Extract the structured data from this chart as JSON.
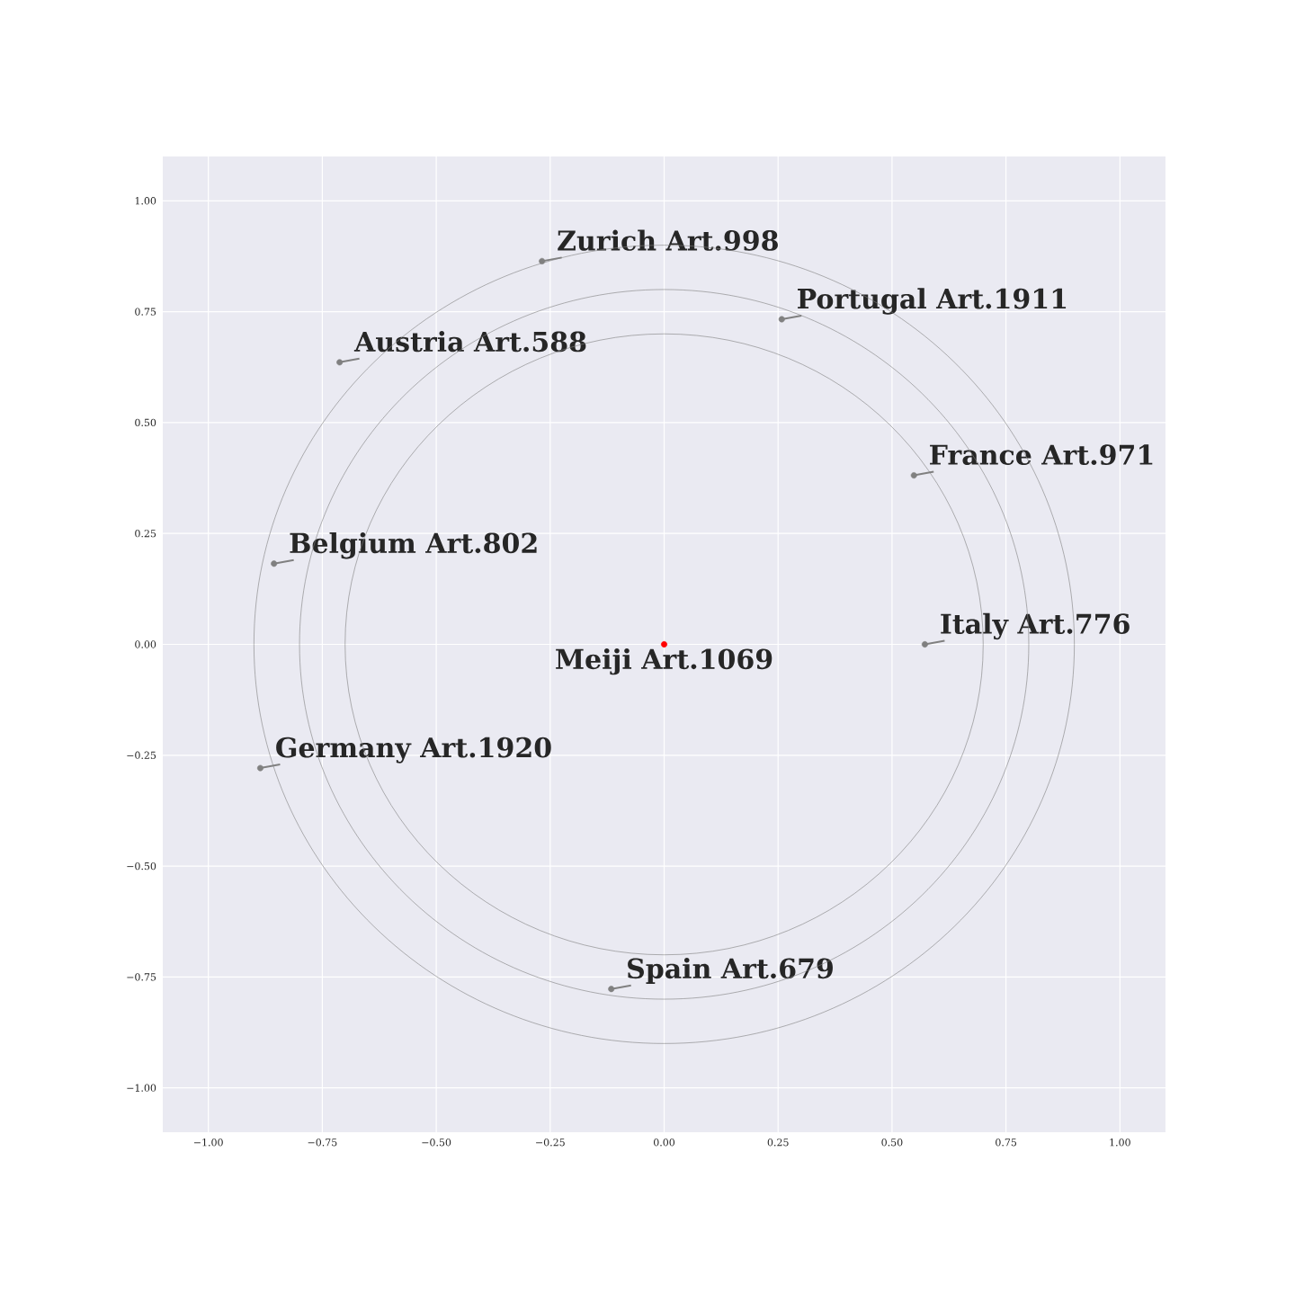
{
  "chart_data": {
    "type": "scatter",
    "xlim": [
      -1.1,
      1.1
    ],
    "ylim": [
      -1.1,
      1.1
    ],
    "grid": true,
    "xticks": [
      {
        "value": -1,
        "label": "−1.00"
      },
      {
        "value": -0.75,
        "label": "−0.75"
      },
      {
        "value": -0.5,
        "label": "−0.50"
      },
      {
        "value": -0.25,
        "label": "−0.25"
      },
      {
        "value": 0,
        "label": "0.00"
      },
      {
        "value": 0.25,
        "label": "0.25"
      },
      {
        "value": 0.5,
        "label": "0.50"
      },
      {
        "value": 0.75,
        "label": "0.75"
      },
      {
        "value": 1,
        "label": "1.00"
      }
    ],
    "yticks": [
      {
        "value": -1,
        "label": "−1.00"
      },
      {
        "value": -0.75,
        "label": "−0.75"
      },
      {
        "value": -0.5,
        "label": "−0.50"
      },
      {
        "value": -0.25,
        "label": "−0.25"
      },
      {
        "value": 0,
        "label": "0.00"
      },
      {
        "value": 0.25,
        "label": "0.25"
      },
      {
        "value": 0.5,
        "label": "0.50"
      },
      {
        "value": 0.75,
        "label": "0.75"
      },
      {
        "value": 1,
        "label": "1.00"
      }
    ],
    "series": [
      {
        "color": "#808080",
        "marker": "circle",
        "x": [
          -0.268,
          0.258,
          -0.712,
          0.548,
          -0.856,
          0.572,
          -0.886,
          -0.116
        ],
        "values": [
          0.864,
          0.733,
          0.636,
          0.381,
          0.182,
          0,
          -0.279,
          -0.777
        ]
      },
      {
        "color": "#ff0000",
        "marker": "circle",
        "x": [
          0
        ],
        "values": [
          0
        ]
      }
    ],
    "annotations": [
      {
        "text": "Zurich Art.998",
        "x": -0.268,
        "y": 0.864
      },
      {
        "text": "Portugal Art.1911",
        "x": 0.258,
        "y": 0.733
      },
      {
        "text": "Austria Art.588",
        "x": -0.712,
        "y": 0.636
      },
      {
        "text": "France Art.971",
        "x": 0.548,
        "y": 0.381
      },
      {
        "text": "Belgium Art.802",
        "x": -0.856,
        "y": 0.182
      },
      {
        "text": "Italy Art.776",
        "x": 0.572,
        "y": 0
      },
      {
        "text": "Meiji Art.1069",
        "x": 0,
        "y": 0
      },
      {
        "text": "Germany Art.1920",
        "x": -0.886,
        "y": -0.279
      },
      {
        "text": "Spain Art.679",
        "x": -0.116,
        "y": -0.777
      }
    ]
  }
}
